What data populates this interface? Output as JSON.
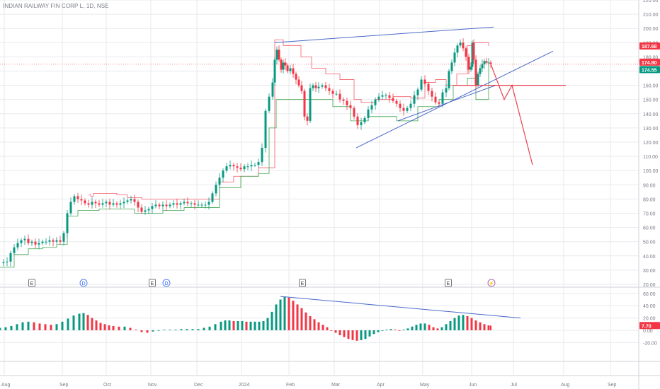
{
  "title": "INDIAN RAILWAY FIN CORP L, 1D, NSE",
  "colors": {
    "up": "#089981",
    "down": "#f23645",
    "trend": "#4a69c7",
    "projection": "#e8424e",
    "stopRed": "#f25c66",
    "stopGreen": "#3fa34d",
    "grid": "#e8eaee",
    "text": "#787b86"
  },
  "chart_data": {
    "type": "candlestick",
    "price_axis": {
      "range": [
        20,
        220
      ],
      "ticks": [
        "220.00",
        "210.00",
        "200.00",
        "190.00",
        "180.00",
        "170.00",
        "160.00",
        "150.00",
        "140.00",
        "130.00",
        "120.00",
        "110.00",
        "100.00",
        "90.00",
        "80.00",
        "70.00",
        "60.00",
        "50.00",
        "40.00",
        "30.00",
        "20.00"
      ]
    },
    "price_labels": [
      {
        "text": "187.68",
        "value": 187.68,
        "color": "#f23645"
      },
      {
        "text": "174.80",
        "value": 174.8,
        "color": "#f23645"
      },
      {
        "text": "174.55",
        "value": 174.55,
        "color": "#089981"
      }
    ],
    "time_axis": {
      "labels": [
        "Aug",
        "Sep",
        "Oct",
        "Nov",
        "Dec",
        "2024",
        "Feb",
        "Mar",
        "Apr",
        "May",
        "Jun",
        "Jul",
        "Aug",
        "Sep"
      ]
    },
    "price_series": [
      [
        0,
        34.9
      ],
      [
        5,
        35.5
      ],
      [
        10,
        36
      ],
      [
        15,
        42
      ],
      [
        20,
        46
      ],
      [
        25,
        49
      ],
      [
        30,
        51
      ],
      [
        35,
        52
      ],
      [
        40,
        49
      ],
      [
        45,
        50
      ],
      [
        50,
        48
      ],
      [
        55,
        49
      ],
      [
        60,
        50
      ],
      [
        65,
        50
      ],
      [
        70,
        51
      ],
      [
        75,
        50
      ],
      [
        80,
        51
      ],
      [
        85,
        50
      ],
      [
        90,
        56
      ],
      [
        95,
        70
      ],
      [
        100,
        78
      ],
      [
        105,
        82
      ],
      [
        110,
        80
      ],
      [
        115,
        79
      ],
      [
        120,
        77
      ],
      [
        125,
        76
      ],
      [
        130,
        78
      ],
      [
        135,
        77
      ],
      [
        140,
        76
      ],
      [
        145,
        77
      ],
      [
        150,
        78
      ],
      [
        155,
        76
      ],
      [
        160,
        77
      ],
      [
        165,
        76
      ],
      [
        170,
        77
      ],
      [
        175,
        78
      ],
      [
        180,
        79
      ],
      [
        185,
        80
      ],
      [
        190,
        78
      ],
      [
        195,
        74
      ],
      [
        200,
        71
      ],
      [
        205,
        72
      ],
      [
        210,
        73
      ],
      [
        215,
        75
      ],
      [
        220,
        76
      ],
      [
        225,
        75
      ],
      [
        230,
        76
      ],
      [
        235,
        75
      ],
      [
        240,
        76
      ],
      [
        245,
        77
      ],
      [
        250,
        76
      ],
      [
        255,
        77
      ],
      [
        260,
        78
      ],
      [
        265,
        77
      ],
      [
        270,
        77
      ],
      [
        275,
        76
      ],
      [
        280,
        76
      ],
      [
        285,
        76
      ],
      [
        290,
        76
      ],
      [
        295,
        78
      ],
      [
        300,
        84
      ],
      [
        305,
        90
      ],
      [
        310,
        95
      ],
      [
        315,
        100
      ],
      [
        320,
        103
      ],
      [
        325,
        104
      ],
      [
        330,
        103
      ],
      [
        335,
        102
      ],
      [
        340,
        101
      ],
      [
        345,
        103
      ],
      [
        350,
        103
      ],
      [
        355,
        104
      ],
      [
        360,
        104
      ],
      [
        365,
        106
      ],
      [
        370,
        116
      ],
      [
        375,
        142
      ],
      [
        380,
        152
      ],
      [
        385,
        162
      ],
      [
        388,
        178
      ],
      [
        391,
        185
      ],
      [
        394,
        178
      ],
      [
        397,
        171
      ],
      [
        400,
        176
      ],
      [
        403,
        174
      ],
      [
        406,
        170
      ],
      [
        410,
        172
      ],
      [
        414,
        168
      ],
      [
        418,
        164
      ],
      [
        422,
        160
      ],
      [
        426,
        156
      ],
      [
        430,
        138
      ],
      [
        434,
        135
      ],
      [
        438,
        158
      ],
      [
        442,
        160
      ],
      [
        446,
        158
      ],
      [
        450,
        159
      ],
      [
        455,
        160
      ],
      [
        460,
        158
      ],
      [
        465,
        156
      ],
      [
        470,
        154
      ],
      [
        475,
        154
      ],
      [
        480,
        150
      ],
      [
        485,
        149
      ],
      [
        490,
        146
      ],
      [
        495,
        144
      ],
      [
        500,
        138
      ],
      [
        505,
        132
      ],
      [
        510,
        134
      ],
      [
        515,
        137
      ],
      [
        520,
        143
      ],
      [
        525,
        146
      ],
      [
        530,
        150
      ],
      [
        535,
        152
      ],
      [
        540,
        153
      ],
      [
        545,
        153
      ],
      [
        550,
        151
      ],
      [
        555,
        149
      ],
      [
        560,
        147
      ],
      [
        565,
        144
      ],
      [
        570,
        142
      ],
      [
        575,
        144
      ],
      [
        580,
        147
      ],
      [
        585,
        153
      ],
      [
        590,
        157
      ],
      [
        595,
        164
      ],
      [
        600,
        161
      ],
      [
        605,
        156
      ],
      [
        610,
        152
      ],
      [
        615,
        148
      ],
      [
        620,
        147
      ],
      [
        625,
        155
      ],
      [
        630,
        158
      ],
      [
        634,
        170
      ],
      [
        638,
        176
      ],
      [
        642,
        183
      ],
      [
        646,
        188
      ],
      [
        650,
        190
      ],
      [
        654,
        186
      ],
      [
        658,
        180
      ],
      [
        662,
        171
      ],
      [
        665,
        173
      ],
      [
        667,
        190
      ],
      [
        669,
        178
      ],
      [
        672,
        160
      ],
      [
        675,
        168
      ],
      [
        678,
        172
      ],
      [
        681,
        175
      ],
      [
        684,
        177
      ],
      [
        687,
        176
      ],
      [
        690,
        176
      ],
      [
        693,
        175
      ]
    ],
    "stop_line_red": [
      [
        125,
        83
      ],
      [
        128,
        82
      ],
      [
        132,
        84
      ],
      [
        150,
        84
      ],
      [
        165,
        83
      ],
      [
        180,
        81
      ],
      [
        200,
        80
      ],
      [
        225,
        80
      ],
      [
        250,
        80
      ],
      [
        270,
        80
      ],
      [
        300,
        80
      ],
      [
        310,
        92
      ],
      [
        330,
        96
      ],
      [
        365,
        102
      ],
      [
        388,
        192
      ],
      [
        400,
        188
      ],
      [
        425,
        180
      ],
      [
        440,
        172
      ],
      [
        460,
        168
      ],
      [
        480,
        164
      ],
      [
        500,
        150
      ],
      [
        510,
        148
      ],
      [
        530,
        150
      ],
      [
        555,
        152
      ],
      [
        580,
        151
      ],
      [
        600,
        162
      ],
      [
        615,
        164
      ],
      [
        630,
        160
      ],
      [
        645,
        168
      ],
      [
        660,
        188
      ],
      [
        670,
        190
      ],
      [
        690,
        187.68
      ]
    ],
    "stop_line_green": [
      [
        0,
        32
      ],
      [
        20,
        41
      ],
      [
        40,
        45
      ],
      [
        60,
        46
      ],
      [
        80,
        48
      ],
      [
        95,
        68
      ],
      [
        110,
        72
      ],
      [
        140,
        73
      ],
      [
        190,
        70
      ],
      [
        230,
        72
      ],
      [
        260,
        74
      ],
      [
        295,
        74
      ],
      [
        310,
        88
      ],
      [
        340,
        96
      ],
      [
        365,
        98
      ],
      [
        380,
        130
      ],
      [
        390,
        150
      ],
      [
        420,
        150
      ],
      [
        440,
        150
      ],
      [
        470,
        145
      ],
      [
        495,
        135
      ],
      [
        520,
        138
      ],
      [
        560,
        135
      ],
      [
        590,
        145
      ],
      [
        620,
        150
      ],
      [
        640,
        160
      ],
      [
        660,
        165
      ],
      [
        672,
        150
      ],
      [
        690,
        174.55
      ]
    ],
    "trendlines": [
      {
        "from": [
          388,
          190
        ],
        "to": [
          697,
          201
        ]
      },
      {
        "from": [
          503,
          116
        ],
        "to": [
          781,
          184
        ]
      },
      {
        "from": [
          562,
          135
        ],
        "to": [
          700,
          160
        ]
      }
    ],
    "support_line": {
      "value": 160,
      "from": 640,
      "to": 799
    },
    "projection": [
      [
        693,
        175
      ],
      [
        712,
        150
      ],
      [
        723,
        160
      ],
      [
        752,
        104
      ]
    ],
    "event_markers": [
      {
        "x": 45,
        "label": "E",
        "kind": "earnings"
      },
      {
        "x": 118,
        "label": "D",
        "kind": "dividend"
      },
      {
        "x": 215,
        "label": "E",
        "kind": "earnings"
      },
      {
        "x": 235,
        "label": "D",
        "kind": "dividend"
      },
      {
        "x": 427,
        "label": "E",
        "kind": "earnings"
      },
      {
        "x": 633,
        "label": "E",
        "kind": "earnings"
      },
      {
        "x": 694,
        "label": "⚡",
        "kind": "split"
      }
    ],
    "oscillator": {
      "range": [
        -30,
        62
      ],
      "ticks": [
        "60.00",
        "40.00",
        "20.00",
        "0.00",
        "-20.00"
      ],
      "last_label": "7.70",
      "last_value": 7.7,
      "series": [
        [
          0,
          4
        ],
        [
          8,
          5
        ],
        [
          16,
          7
        ],
        [
          24,
          10
        ],
        [
          32,
          13
        ],
        [
          40,
          14
        ],
        [
          48,
          13
        ],
        [
          56,
          11
        ],
        [
          64,
          10
        ],
        [
          72,
          9
        ],
        [
          80,
          10
        ],
        [
          88,
          14
        ],
        [
          96,
          19
        ],
        [
          104,
          24
        ],
        [
          112,
          27
        ],
        [
          118,
          28
        ],
        [
          124,
          25
        ],
        [
          130,
          20
        ],
        [
          136,
          16
        ],
        [
          142,
          12
        ],
        [
          148,
          10
        ],
        [
          154,
          8
        ],
        [
          160,
          7
        ],
        [
          168,
          6
        ],
        [
          176,
          6
        ],
        [
          184,
          4
        ],
        [
          192,
          1
        ],
        [
          200,
          -3
        ],
        [
          208,
          -4
        ],
        [
          216,
          -2
        ],
        [
          224,
          0
        ],
        [
          232,
          1
        ],
        [
          240,
          1
        ],
        [
          248,
          1
        ],
        [
          256,
          2
        ],
        [
          264,
          2
        ],
        [
          272,
          2
        ],
        [
          280,
          2
        ],
        [
          288,
          4
        ],
        [
          296,
          6
        ],
        [
          304,
          10
        ],
        [
          312,
          14
        ],
        [
          318,
          16
        ],
        [
          324,
          16
        ],
        [
          330,
          15
        ],
        [
          336,
          15
        ],
        [
          342,
          15
        ],
        [
          348,
          14
        ],
        [
          354,
          14
        ],
        [
          360,
          14
        ],
        [
          366,
          14
        ],
        [
          372,
          15
        ],
        [
          378,
          20
        ],
        [
          384,
          30
        ],
        [
          390,
          42
        ],
        [
          396,
          50
        ],
        [
          402,
          54
        ],
        [
          408,
          53
        ],
        [
          414,
          48
        ],
        [
          420,
          42
        ],
        [
          426,
          36
        ],
        [
          432,
          29
        ],
        [
          438,
          23
        ],
        [
          444,
          18
        ],
        [
          450,
          13
        ],
        [
          456,
          9
        ],
        [
          462,
          5
        ],
        [
          468,
          0
        ],
        [
          474,
          -4
        ],
        [
          480,
          -8
        ],
        [
          486,
          -11
        ],
        [
          492,
          -14
        ],
        [
          498,
          -16
        ],
        [
          504,
          -17
        ],
        [
          510,
          -16
        ],
        [
          516,
          -14
        ],
        [
          522,
          -10
        ],
        [
          528,
          -6
        ],
        [
          534,
          -3
        ],
        [
          540,
          -1
        ],
        [
          546,
          1
        ],
        [
          552,
          2
        ],
        [
          558,
          1
        ],
        [
          564,
          0
        ],
        [
          570,
          1
        ],
        [
          576,
          3
        ],
        [
          582,
          6
        ],
        [
          588,
          9
        ],
        [
          594,
          11
        ],
        [
          600,
          11
        ],
        [
          606,
          9
        ],
        [
          612,
          5
        ],
        [
          618,
          3
        ],
        [
          624,
          5
        ],
        [
          630,
          10
        ],
        [
          636,
          15
        ],
        [
          642,
          20
        ],
        [
          648,
          24
        ],
        [
          654,
          25
        ],
        [
          660,
          23
        ],
        [
          666,
          20
        ],
        [
          672,
          16
        ],
        [
          678,
          13
        ],
        [
          684,
          10
        ],
        [
          690,
          8
        ],
        [
          693,
          7.7
        ]
      ],
      "trendline": {
        "from": [
          396,
          55
        ],
        "to": [
          735,
          20
        ]
      }
    }
  }
}
